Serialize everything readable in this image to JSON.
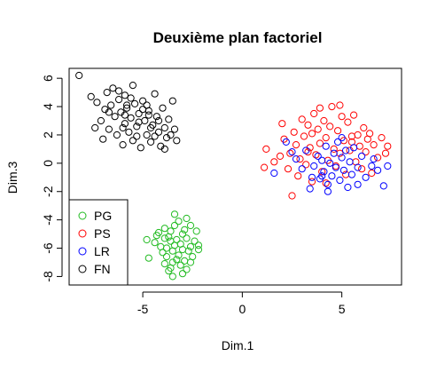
{
  "chart_data": {
    "type": "scatter",
    "title": "Deuxième plan factoriel",
    "xlabel": "Dim.1",
    "ylabel": "Dim.3",
    "xlim": [
      -8.7,
      8.0
    ],
    "ylim": [
      -8.6,
      6.7
    ],
    "x_ticks": [
      -5,
      0,
      5
    ],
    "y_ticks": [
      -8,
      -6,
      -4,
      -2,
      0,
      2,
      4,
      6
    ],
    "grid": false,
    "legend_position": "bottom-left",
    "series": [
      {
        "name": "PG",
        "color": "#22bb22",
        "points": [
          [
            -4.7,
            -6.7
          ],
          [
            -4.4,
            -5.6
          ],
          [
            -4.3,
            -5.1
          ],
          [
            -4.2,
            -4.9
          ],
          [
            -4.1,
            -5.9
          ],
          [
            -4.0,
            -6.3
          ],
          [
            -3.9,
            -4.6
          ],
          [
            -3.9,
            -5.3
          ],
          [
            -3.8,
            -6.0
          ],
          [
            -3.8,
            -6.6
          ],
          [
            -3.7,
            -5.2
          ],
          [
            -3.7,
            -7.6
          ],
          [
            -3.6,
            -5.5
          ],
          [
            -3.6,
            -4.8
          ],
          [
            -3.5,
            -6.2
          ],
          [
            -3.5,
            -7.0
          ],
          [
            -3.5,
            -8.0
          ],
          [
            -3.4,
            -5.8
          ],
          [
            -3.4,
            -4.4
          ],
          [
            -3.3,
            -6.8
          ],
          [
            -3.3,
            -5.4
          ],
          [
            -3.2,
            -6.5
          ],
          [
            -3.2,
            -4.1
          ],
          [
            -3.1,
            -5.7
          ],
          [
            -3.1,
            -7.2
          ],
          [
            -3.0,
            -6.1
          ],
          [
            -3.0,
            -5.0
          ],
          [
            -2.9,
            -4.7
          ],
          [
            -2.9,
            -6.9
          ],
          [
            -2.8,
            -5.3
          ],
          [
            -2.8,
            -7.5
          ],
          [
            -2.7,
            -6.2
          ],
          [
            -2.6,
            -4.4
          ],
          [
            -2.6,
            -5.9
          ],
          [
            -2.5,
            -6.6
          ],
          [
            -2.4,
            -5.5
          ],
          [
            -2.3,
            -4.8
          ],
          [
            -2.2,
            -6.1
          ],
          [
            -3.6,
            -7.4
          ],
          [
            -3.9,
            -7.1
          ],
          [
            -3.4,
            -3.6
          ],
          [
            -2.8,
            -3.9
          ],
          [
            -2.2,
            -5.8
          ],
          [
            -4.8,
            -5.4
          ],
          [
            -3.0,
            -7.8
          ],
          [
            -2.6,
            -7.0
          ]
        ]
      },
      {
        "name": "PS",
        "color": "#ff0000",
        "points": [
          [
            1.1,
            -0.3
          ],
          [
            1.2,
            1.0
          ],
          [
            1.6,
            0.1
          ],
          [
            2.1,
            1.7
          ],
          [
            2.3,
            -0.4
          ],
          [
            2.4,
            0.7
          ],
          [
            2.6,
            2.2
          ],
          [
            2.7,
            1.3
          ],
          [
            2.8,
            -0.9
          ],
          [
            2.9,
            0.3
          ],
          [
            3.0,
            3.1
          ],
          [
            3.1,
            1.9
          ],
          [
            3.2,
            -0.1
          ],
          [
            3.3,
            2.7
          ],
          [
            3.4,
            1.1
          ],
          [
            3.5,
            -1.3
          ],
          [
            3.5,
            2.1
          ],
          [
            3.6,
            3.5
          ],
          [
            3.7,
            0.6
          ],
          [
            3.8,
            2.4
          ],
          [
            3.9,
            1.4
          ],
          [
            4.0,
            -0.6
          ],
          [
            4.1,
            3.0
          ],
          [
            4.2,
            1.8
          ],
          [
            4.3,
            0.2
          ],
          [
            4.4,
            2.6
          ],
          [
            4.5,
            4.0
          ],
          [
            4.6,
            1.0
          ],
          [
            4.7,
            -0.2
          ],
          [
            4.8,
            2.3
          ],
          [
            4.9,
            0.7
          ],
          [
            5.0,
            3.3
          ],
          [
            5.1,
            1.6
          ],
          [
            5.2,
            -0.8
          ],
          [
            5.3,
            2.9
          ],
          [
            5.4,
            0.9
          ],
          [
            5.5,
            1.9
          ],
          [
            5.6,
            3.4
          ],
          [
            5.7,
            0.1
          ],
          [
            5.8,
            2.0
          ],
          [
            5.9,
            1.2
          ],
          [
            6.0,
            -0.4
          ],
          [
            6.1,
            2.5
          ],
          [
            6.2,
            0.8
          ],
          [
            6.3,
            1.7
          ],
          [
            6.5,
            -0.7
          ],
          [
            6.6,
            1.3
          ],
          [
            6.8,
            0.4
          ],
          [
            7.0,
            1.8
          ],
          [
            7.2,
            0.7
          ],
          [
            2.5,
            -2.3
          ],
          [
            3.9,
            3.9
          ],
          [
            4.9,
            4.1
          ],
          [
            2.0,
            2.8
          ],
          [
            1.9,
            0.5
          ],
          [
            3.3,
            0.8
          ],
          [
            4.2,
            -1.4
          ],
          [
            5.5,
            1.5
          ],
          [
            6.4,
            2.1
          ],
          [
            7.3,
            1.2
          ]
        ]
      },
      {
        "name": "LR",
        "color": "#0000ff",
        "points": [
          [
            1.6,
            -0.7
          ],
          [
            2.2,
            1.5
          ],
          [
            2.7,
            0.3
          ],
          [
            3.0,
            -0.4
          ],
          [
            3.2,
            0.9
          ],
          [
            3.4,
            -1.8
          ],
          [
            3.6,
            -0.2
          ],
          [
            3.8,
            0.5
          ],
          [
            3.9,
            -1.1
          ],
          [
            4.0,
            0.2
          ],
          [
            4.1,
            -0.6
          ],
          [
            4.2,
            1.2
          ],
          [
            4.3,
            -1.5
          ],
          [
            4.4,
            0.0
          ],
          [
            4.5,
            -0.9
          ],
          [
            4.6,
            0.7
          ],
          [
            4.7,
            -0.3
          ],
          [
            4.8,
            1.5
          ],
          [
            4.9,
            -1.2
          ],
          [
            5.0,
            0.4
          ],
          [
            5.1,
            -0.5
          ],
          [
            5.2,
            0.9
          ],
          [
            5.3,
            -1.7
          ],
          [
            5.4,
            0.1
          ],
          [
            5.5,
            -0.8
          ],
          [
            5.6,
            1.1
          ],
          [
            5.8,
            -0.3
          ],
          [
            6.0,
            0.5
          ],
          [
            6.2,
            -1.0
          ],
          [
            6.5,
            -0.2
          ],
          [
            6.8,
            -0.5
          ],
          [
            7.1,
            -1.6
          ],
          [
            7.3,
            -0.2
          ],
          [
            5.0,
            1.8
          ],
          [
            4.3,
            -2.0
          ],
          [
            3.5,
            -1.0
          ],
          [
            2.5,
            0.8
          ],
          [
            5.8,
            -1.5
          ],
          [
            6.6,
            0.3
          ],
          [
            4.0,
            -0.9
          ]
        ]
      },
      {
        "name": "FN",
        "color": "#000000",
        "points": [
          [
            -8.2,
            6.2
          ],
          [
            -7.6,
            4.7
          ],
          [
            -7.3,
            4.3
          ],
          [
            -7.1,
            3.0
          ],
          [
            -7.0,
            1.7
          ],
          [
            -6.9,
            3.8
          ],
          [
            -6.8,
            5.0
          ],
          [
            -6.7,
            2.4
          ],
          [
            -6.6,
            4.1
          ],
          [
            -6.5,
            5.3
          ],
          [
            -6.4,
            3.3
          ],
          [
            -6.3,
            2.0
          ],
          [
            -6.2,
            4.5
          ],
          [
            -6.1,
            3.6
          ],
          [
            -6.0,
            1.3
          ],
          [
            -5.9,
            2.8
          ],
          [
            -5.9,
            4.8
          ],
          [
            -5.8,
            3.9
          ],
          [
            -5.7,
            2.2
          ],
          [
            -5.6,
            3.2
          ],
          [
            -5.5,
            5.5
          ],
          [
            -5.5,
            1.6
          ],
          [
            -5.4,
            4.2
          ],
          [
            -5.3,
            2.6
          ],
          [
            -5.2,
            3.5
          ],
          [
            -5.1,
            1.1
          ],
          [
            -5.0,
            4.4
          ],
          [
            -4.9,
            3.0
          ],
          [
            -4.8,
            2.0
          ],
          [
            -4.7,
            3.7
          ],
          [
            -4.6,
            1.5
          ],
          [
            -4.5,
            2.7
          ],
          [
            -4.4,
            4.9
          ],
          [
            -4.3,
            3.3
          ],
          [
            -4.2,
            2.2
          ],
          [
            -4.1,
            1.2
          ],
          [
            -4.0,
            3.9
          ],
          [
            -3.9,
            2.5
          ],
          [
            -3.8,
            1.8
          ],
          [
            -3.7,
            3.1
          ],
          [
            -3.6,
            2.0
          ],
          [
            -3.5,
            4.4
          ],
          [
            -3.4,
            2.4
          ],
          [
            -3.3,
            1.6
          ],
          [
            -6.2,
            5.1
          ],
          [
            -5.6,
            4.6
          ],
          [
            -5.2,
            2.9
          ],
          [
            -4.8,
            4.1
          ],
          [
            -4.4,
            1.9
          ],
          [
            -6.7,
            3.6
          ],
          [
            -7.4,
            2.5
          ],
          [
            -5.9,
            3.4
          ],
          [
            -5.0,
            3.8
          ],
          [
            -4.6,
            2.5
          ],
          [
            -4.2,
            3.0
          ],
          [
            -5.3,
            1.9
          ],
          [
            -6.0,
            2.5
          ],
          [
            -3.9,
            1.0
          ],
          [
            -5.8,
            4.1
          ],
          [
            -4.7,
            3.4
          ]
        ]
      }
    ]
  }
}
